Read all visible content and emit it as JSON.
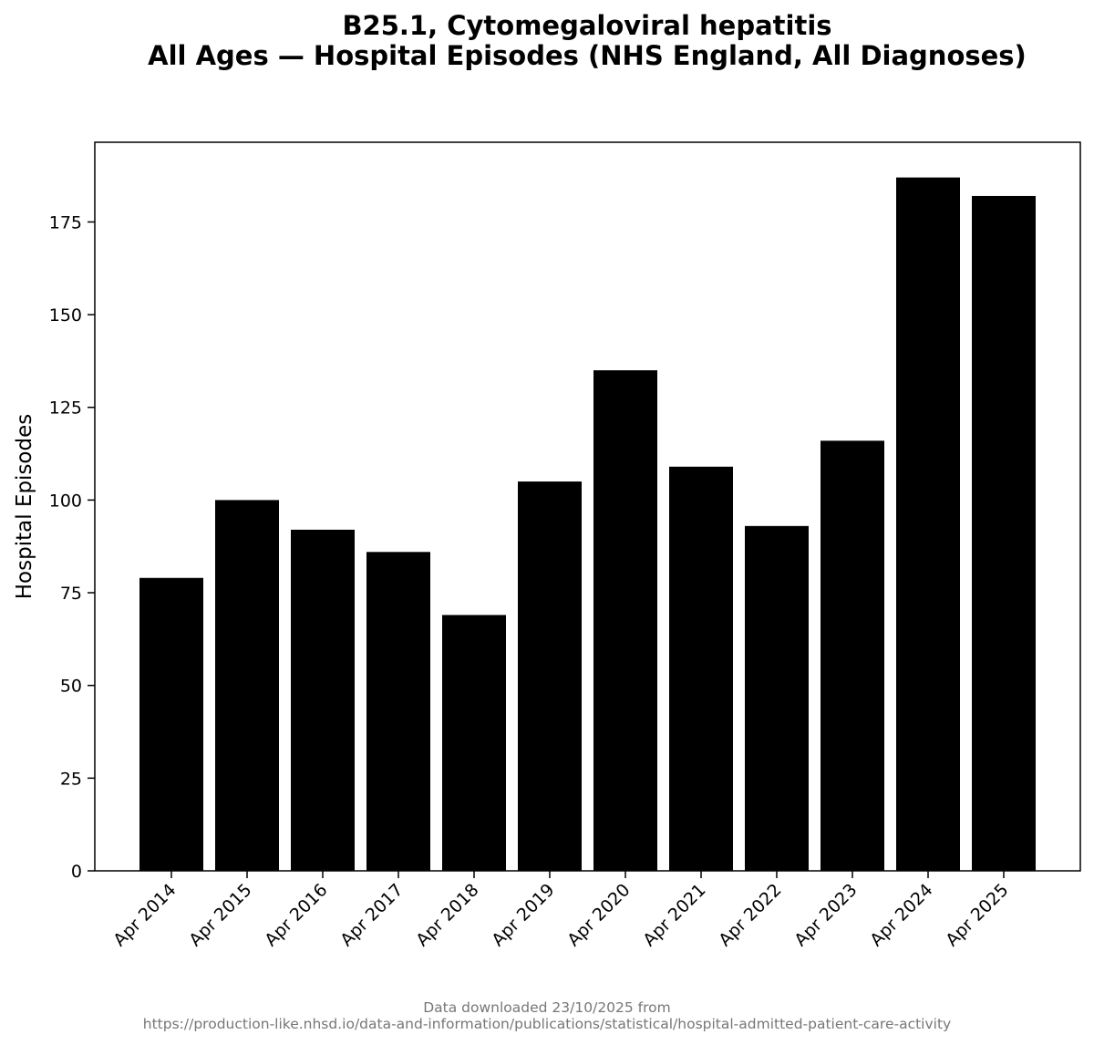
{
  "chart_data": {
    "type": "bar",
    "title_lines": [
      "B25.1, Cytomegaloviral hepatitis",
      "All Ages — Hospital Episodes (NHS England, All Diagnoses)"
    ],
    "xlabel": "",
    "ylabel": "Hospital Episodes",
    "categories": [
      "Apr 2014",
      "Apr 2015",
      "Apr 2016",
      "Apr 2017",
      "Apr 2018",
      "Apr 2019",
      "Apr 2020",
      "Apr 2021",
      "Apr 2022",
      "Apr 2023",
      "Apr 2024",
      "Apr 2025"
    ],
    "values": [
      79,
      100,
      92,
      86,
      69,
      105,
      135,
      109,
      93,
      116,
      187,
      182
    ],
    "ylim": [
      0,
      196.5
    ],
    "yticks": [
      0,
      25,
      50,
      75,
      100,
      125,
      150,
      175
    ],
    "grid": false,
    "colors": {
      "bar": "#000000",
      "footer": "#777777"
    }
  },
  "footer": {
    "lines": [
      "Data downloaded 23/10/2025 from",
      "https://production-like.nhsd.io/data-and-information/publications/statistical/hospital-admitted-patient-care-activity"
    ]
  }
}
